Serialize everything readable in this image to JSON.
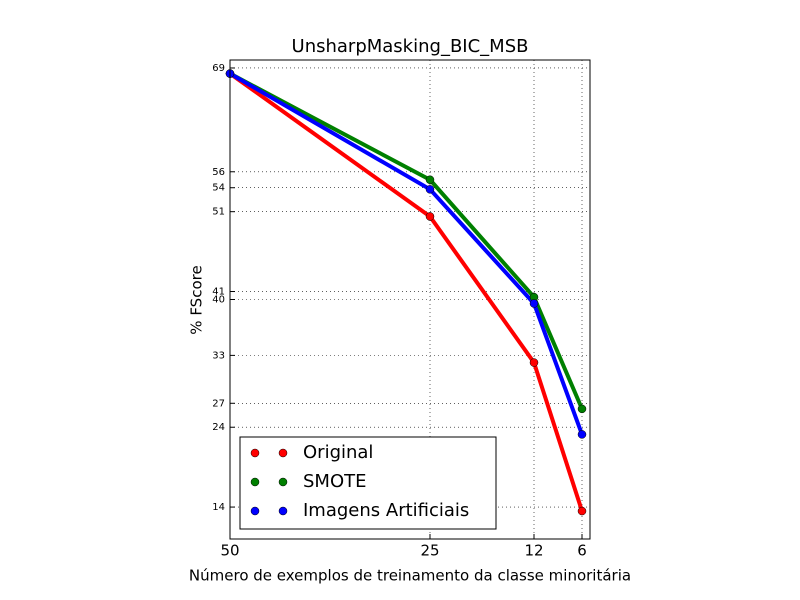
{
  "chart_data": {
    "type": "line",
    "title": "UnsharpMasking_BIC_MSB",
    "x_label": "Número de exemplos de treinamento da classe minoritária",
    "y_label": "% FScore",
    "x": [
      50,
      25,
      12,
      6
    ],
    "xlim": [
      50,
      5
    ],
    "xticks": [
      50,
      25,
      12,
      6
    ],
    "ylim": [
      10,
      70
    ],
    "yticks": [
      14,
      24,
      27,
      33,
      40,
      41,
      51,
      54,
      56,
      69
    ],
    "grid": true,
    "legend_position": "lower left",
    "series": [
      {
        "name": "Original",
        "color": "#ff0000",
        "values": [
          68.3,
          50.4,
          32.1,
          13.5
        ]
      },
      {
        "name": "SMOTE",
        "color": "#008000",
        "values": [
          68.3,
          55.0,
          40.3,
          26.3
        ]
      },
      {
        "name": "Imagens Artificiais",
        "color": "#0000ff",
        "values": [
          68.3,
          53.8,
          39.5,
          23.1
        ]
      }
    ]
  }
}
